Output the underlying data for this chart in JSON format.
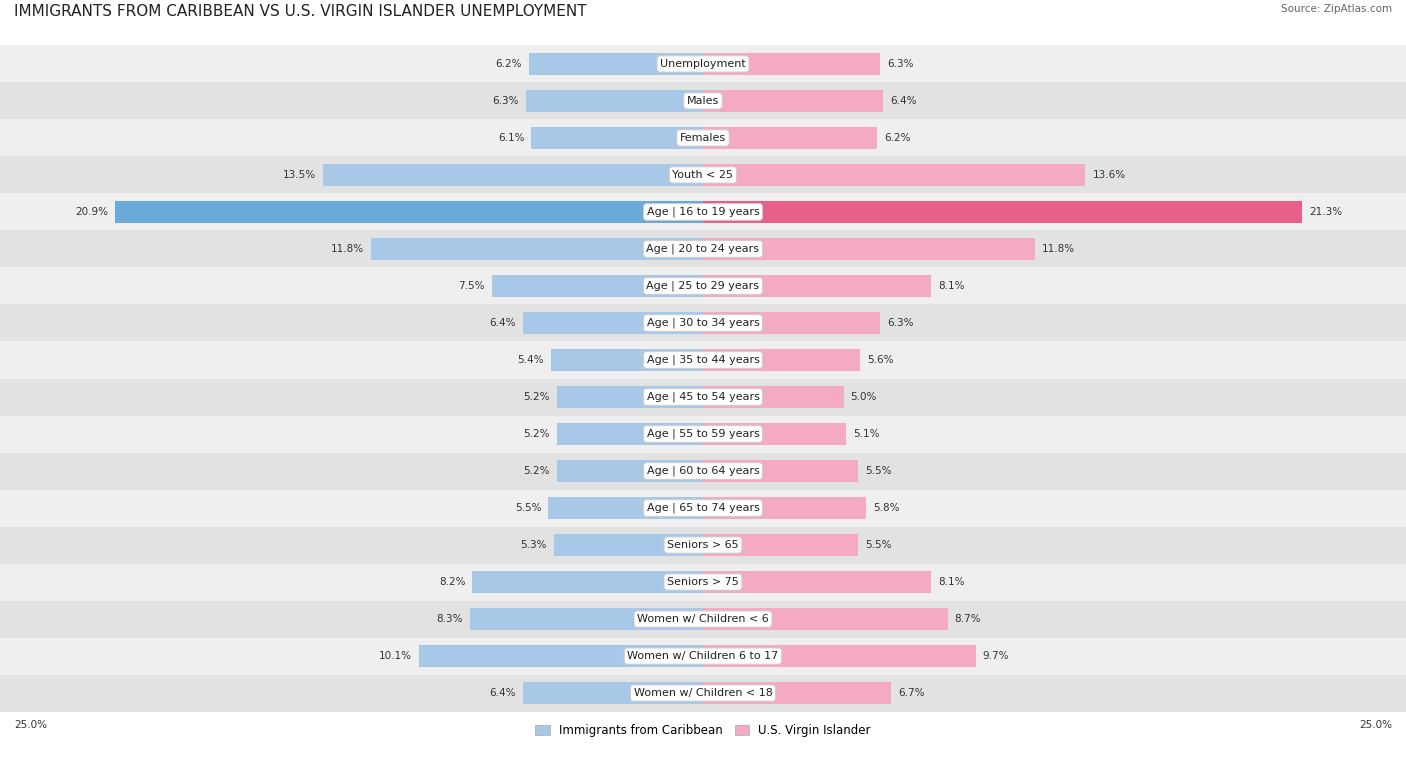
{
  "title": "IMMIGRANTS FROM CARIBBEAN VS U.S. VIRGIN ISLANDER UNEMPLOYMENT",
  "source": "Source: ZipAtlas.com",
  "categories": [
    "Unemployment",
    "Males",
    "Females",
    "Youth < 25",
    "Age | 16 to 19 years",
    "Age | 20 to 24 years",
    "Age | 25 to 29 years",
    "Age | 30 to 34 years",
    "Age | 35 to 44 years",
    "Age | 45 to 54 years",
    "Age | 55 to 59 years",
    "Age | 60 to 64 years",
    "Age | 65 to 74 years",
    "Seniors > 65",
    "Seniors > 75",
    "Women w/ Children < 6",
    "Women w/ Children 6 to 17",
    "Women w/ Children < 18"
  ],
  "left_values": [
    6.2,
    6.3,
    6.1,
    13.5,
    20.9,
    11.8,
    7.5,
    6.4,
    5.4,
    5.2,
    5.2,
    5.2,
    5.5,
    5.3,
    8.2,
    8.3,
    10.1,
    6.4
  ],
  "right_values": [
    6.3,
    6.4,
    6.2,
    13.6,
    21.3,
    11.8,
    8.1,
    6.3,
    5.6,
    5.0,
    5.1,
    5.5,
    5.8,
    5.5,
    8.1,
    8.7,
    9.7,
    6.7
  ],
  "left_color": "#a8c8e8",
  "right_color": "#f4aac0",
  "highlight_left_color": "#6aaad8",
  "highlight_right_color": "#e8608a",
  "row_color_even": "#efefef",
  "row_color_odd": "#e2e2e2",
  "axis_max": 25.0,
  "legend_left": "Immigrants from Caribbean",
  "legend_right": "U.S. Virgin Islander",
  "title_fontsize": 11,
  "source_fontsize": 7.5,
  "label_fontsize": 8,
  "value_fontsize": 7.5,
  "bar_height": 0.6,
  "background_color": "#ffffff",
  "highlight_row": 4
}
